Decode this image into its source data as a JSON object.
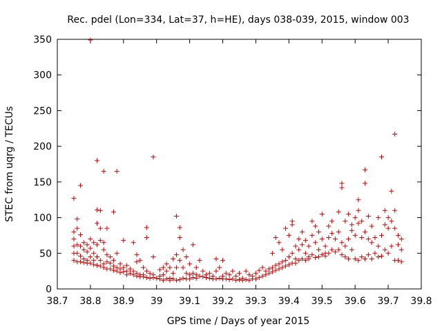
{
  "chart_data": {
    "type": "scatter",
    "title": "Rec. pdel (Lon=334, Lat=37, h=HE), days 038-039, 2015, window 003",
    "xlabel": "GPS time / Days of year 2015",
    "ylabel": "STEC from uqrg / TECUs",
    "xlim": [
      38.7,
      39.8
    ],
    "ylim": [
      0,
      350
    ],
    "xticks": [
      "38.7",
      "38.8",
      "38.9",
      "39",
      "39.1",
      "39.2",
      "39.3",
      "39.4",
      "39.5",
      "39.6",
      "39.7",
      "39.8"
    ],
    "yticks": [
      "0",
      "50",
      "100",
      "150",
      "200",
      "250",
      "300",
      "350"
    ],
    "grid": false,
    "marker": "+",
    "color": "#cc0000",
    "points": [
      [
        38.75,
        127
      ],
      [
        38.75,
        80
      ],
      [
        38.75,
        70
      ],
      [
        38.75,
        60
      ],
      [
        38.75,
        50
      ],
      [
        38.75,
        40
      ],
      [
        38.76,
        98
      ],
      [
        38.76,
        85
      ],
      [
        38.76,
        62
      ],
      [
        38.76,
        50
      ],
      [
        38.76,
        38
      ],
      [
        38.77,
        145
      ],
      [
        38.77,
        76
      ],
      [
        38.77,
        60
      ],
      [
        38.77,
        46
      ],
      [
        38.77,
        38
      ],
      [
        38.78,
        65
      ],
      [
        38.78,
        55
      ],
      [
        38.78,
        42
      ],
      [
        38.78,
        37
      ],
      [
        38.79,
        62
      ],
      [
        38.79,
        52
      ],
      [
        38.79,
        40
      ],
      [
        38.79,
        36
      ],
      [
        38.8,
        349
      ],
      [
        38.8,
        70
      ],
      [
        38.8,
        57
      ],
      [
        38.8,
        45
      ],
      [
        38.8,
        36
      ],
      [
        38.81,
        65
      ],
      [
        38.81,
        50
      ],
      [
        38.81,
        40
      ],
      [
        38.81,
        34
      ],
      [
        38.82,
        180
      ],
      [
        38.82,
        111
      ],
      [
        38.82,
        92
      ],
      [
        38.82,
        62
      ],
      [
        38.82,
        45
      ],
      [
        38.82,
        33
      ],
      [
        38.83,
        110
      ],
      [
        38.83,
        85
      ],
      [
        38.83,
        68
      ],
      [
        38.83,
        40
      ],
      [
        38.83,
        32
      ],
      [
        38.84,
        165
      ],
      [
        38.84,
        65
      ],
      [
        38.84,
        55
      ],
      [
        38.84,
        35
      ],
      [
        38.84,
        30
      ],
      [
        38.85,
        85
      ],
      [
        38.85,
        48
      ],
      [
        38.85,
        38
      ],
      [
        38.85,
        28
      ],
      [
        38.86,
        45
      ],
      [
        38.86,
        36
      ],
      [
        38.86,
        28
      ],
      [
        38.87,
        108
      ],
      [
        38.87,
        40
      ],
      [
        38.87,
        32
      ],
      [
        38.87,
        26
      ],
      [
        38.88,
        165
      ],
      [
        38.88,
        50
      ],
      [
        38.88,
        30
      ],
      [
        38.88,
        25
      ],
      [
        38.89,
        35
      ],
      [
        38.89,
        28
      ],
      [
        38.89,
        23
      ],
      [
        38.9,
        68
      ],
      [
        38.9,
        30
      ],
      [
        38.9,
        24
      ],
      [
        38.91,
        33
      ],
      [
        38.91,
        25
      ],
      [
        38.91,
        20
      ],
      [
        38.92,
        28
      ],
      [
        38.92,
        22
      ],
      [
        38.93,
        65
      ],
      [
        38.93,
        25
      ],
      [
        38.93,
        20
      ],
      [
        38.94,
        48
      ],
      [
        38.94,
        38
      ],
      [
        38.94,
        22
      ],
      [
        38.94,
        18
      ],
      [
        38.95,
        40
      ],
      [
        38.95,
        20
      ],
      [
        38.95,
        17
      ],
      [
        38.96,
        30
      ],
      [
        38.96,
        20
      ],
      [
        38.96,
        17
      ],
      [
        38.97,
        86
      ],
      [
        38.97,
        72
      ],
      [
        38.97,
        25
      ],
      [
        38.97,
        16
      ],
      [
        38.98,
        22
      ],
      [
        38.98,
        15
      ],
      [
        38.99,
        185
      ],
      [
        38.99,
        45
      ],
      [
        38.99,
        20
      ],
      [
        38.99,
        16
      ],
      [
        39.0,
        15
      ],
      [
        39.01,
        27
      ],
      [
        39.01,
        18
      ],
      [
        39.01,
        14
      ],
      [
        39.02,
        30
      ],
      [
        39.02,
        20
      ],
      [
        39.02,
        12
      ],
      [
        39.03,
        35
      ],
      [
        39.03,
        25
      ],
      [
        39.03,
        14
      ],
      [
        39.04,
        30
      ],
      [
        39.04,
        15
      ],
      [
        39.04,
        12
      ],
      [
        39.05,
        42
      ],
      [
        39.05,
        22
      ],
      [
        39.05,
        14
      ],
      [
        39.06,
        102
      ],
      [
        39.06,
        48
      ],
      [
        39.06,
        30
      ],
      [
        39.06,
        12
      ],
      [
        39.07,
        86
      ],
      [
        39.07,
        72
      ],
      [
        39.07,
        40
      ],
      [
        39.07,
        13
      ],
      [
        39.08,
        55
      ],
      [
        39.08,
        30
      ],
      [
        39.08,
        15
      ],
      [
        39.09,
        45
      ],
      [
        39.09,
        22
      ],
      [
        39.09,
        14
      ],
      [
        39.1,
        35
      ],
      [
        39.1,
        20
      ],
      [
        39.1,
        14
      ],
      [
        39.11,
        62
      ],
      [
        39.11,
        22
      ],
      [
        39.11,
        16
      ],
      [
        39.12,
        30
      ],
      [
        39.12,
        20
      ],
      [
        39.12,
        15
      ],
      [
        39.13,
        40
      ],
      [
        39.13,
        18
      ],
      [
        39.14,
        25
      ],
      [
        39.14,
        17
      ],
      [
        39.15,
        20
      ],
      [
        39.15,
        16
      ],
      [
        39.16,
        22
      ],
      [
        39.16,
        15
      ],
      [
        39.17,
        18
      ],
      [
        39.17,
        14
      ],
      [
        39.18,
        42
      ],
      [
        39.18,
        25
      ],
      [
        39.18,
        14
      ],
      [
        39.19,
        30
      ],
      [
        39.19,
        15
      ],
      [
        39.2,
        40
      ],
      [
        39.2,
        18
      ],
      [
        39.2,
        14
      ],
      [
        39.21,
        22
      ],
      [
        39.21,
        14
      ],
      [
        39.22,
        20
      ],
      [
        39.22,
        13
      ],
      [
        39.23,
        25
      ],
      [
        39.23,
        14
      ],
      [
        39.24,
        18
      ],
      [
        39.24,
        12
      ],
      [
        39.25,
        22
      ],
      [
        39.25,
        13
      ],
      [
        39.26,
        15
      ],
      [
        39.26,
        12
      ],
      [
        39.27,
        25
      ],
      [
        39.27,
        13
      ],
      [
        39.28,
        20
      ],
      [
        39.28,
        12
      ],
      [
        39.29,
        18
      ],
      [
        39.29,
        14
      ],
      [
        39.3,
        22
      ],
      [
        39.3,
        14
      ],
      [
        39.31,
        26
      ],
      [
        39.31,
        16
      ],
      [
        39.32,
        30
      ],
      [
        39.32,
        18
      ],
      [
        39.33,
        25
      ],
      [
        39.33,
        20
      ],
      [
        39.34,
        28
      ],
      [
        39.34,
        22
      ],
      [
        39.35,
        50
      ],
      [
        39.35,
        30
      ],
      [
        39.35,
        24
      ],
      [
        39.36,
        72
      ],
      [
        39.36,
        33
      ],
      [
        39.36,
        26
      ],
      [
        39.37,
        65
      ],
      [
        39.37,
        35
      ],
      [
        39.37,
        28
      ],
      [
        39.38,
        55
      ],
      [
        39.38,
        38
      ],
      [
        39.38,
        30
      ],
      [
        39.39,
        85
      ],
      [
        39.39,
        40
      ],
      [
        39.39,
        32
      ],
      [
        39.4,
        75
      ],
      [
        39.4,
        45
      ],
      [
        39.4,
        34
      ],
      [
        39.41,
        95
      ],
      [
        39.41,
        90
      ],
      [
        39.41,
        50
      ],
      [
        39.41,
        36
      ],
      [
        39.42,
        60
      ],
      [
        39.42,
        42
      ],
      [
        39.42,
        36
      ],
      [
        39.43,
        70
      ],
      [
        39.43,
        55
      ],
      [
        39.43,
        40
      ],
      [
        39.44,
        80
      ],
      [
        39.44,
        62
      ],
      [
        39.44,
        42
      ],
      [
        39.45,
        68
      ],
      [
        39.45,
        50
      ],
      [
        39.45,
        40
      ],
      [
        39.46,
        60
      ],
      [
        39.46,
        45
      ],
      [
        39.46,
        42
      ],
      [
        39.47,
        95
      ],
      [
        39.47,
        75
      ],
      [
        39.47,
        48
      ],
      [
        39.48,
        88
      ],
      [
        39.48,
        65
      ],
      [
        39.48,
        44
      ],
      [
        39.49,
        80
      ],
      [
        39.49,
        55
      ],
      [
        39.49,
        45
      ],
      [
        39.5,
        105
      ],
      [
        39.5,
        70
      ],
      [
        39.5,
        48
      ],
      [
        39.51,
        60
      ],
      [
        39.51,
        50
      ],
      [
        39.51,
        46
      ],
      [
        39.52,
        88
      ],
      [
        39.52,
        72
      ],
      [
        39.52,
        50
      ],
      [
        39.53,
        95
      ],
      [
        39.53,
        78
      ],
      [
        39.53,
        55
      ],
      [
        39.54,
        70
      ],
      [
        39.54,
        52
      ],
      [
        39.55,
        108
      ],
      [
        39.55,
        80
      ],
      [
        39.55,
        55
      ],
      [
        39.56,
        148
      ],
      [
        39.56,
        142
      ],
      [
        39.56,
        65
      ],
      [
        39.56,
        48
      ],
      [
        39.57,
        95
      ],
      [
        39.57,
        60
      ],
      [
        39.57,
        45
      ],
      [
        39.58,
        105
      ],
      [
        39.58,
        70
      ],
      [
        39.58,
        42
      ],
      [
        39.59,
        90
      ],
      [
        39.59,
        82
      ],
      [
        39.59,
        55
      ],
      [
        39.6,
        100
      ],
      [
        39.6,
        75
      ],
      [
        39.6,
        42
      ],
      [
        39.61,
        125
      ],
      [
        39.61,
        110
      ],
      [
        39.61,
        92
      ],
      [
        39.61,
        40
      ],
      [
        39.62,
        95
      ],
      [
        39.62,
        72
      ],
      [
        39.62,
        45
      ],
      [
        39.63,
        167
      ],
      [
        39.63,
        148
      ],
      [
        39.63,
        80
      ],
      [
        39.63,
        42
      ],
      [
        39.64,
        102
      ],
      [
        39.64,
        70
      ],
      [
        39.64,
        48
      ],
      [
        39.65,
        88
      ],
      [
        39.65,
        65
      ],
      [
        39.65,
        42
      ],
      [
        39.66,
        72
      ],
      [
        39.66,
        50
      ],
      [
        39.67,
        100
      ],
      [
        39.67,
        60
      ],
      [
        39.67,
        45
      ],
      [
        39.68,
        185
      ],
      [
        39.68,
        75
      ],
      [
        39.68,
        46
      ],
      [
        39.69,
        110
      ],
      [
        39.69,
        90
      ],
      [
        39.69,
        55
      ],
      [
        39.7,
        100
      ],
      [
        39.7,
        85
      ],
      [
        39.7,
        50
      ],
      [
        39.71,
        137
      ],
      [
        39.71,
        95
      ],
      [
        39.71,
        60
      ],
      [
        39.72,
        217
      ],
      [
        39.72,
        110
      ],
      [
        39.72,
        85
      ],
      [
        39.72,
        40
      ],
      [
        39.73,
        75
      ],
      [
        39.73,
        62
      ],
      [
        39.73,
        40
      ],
      [
        39.74,
        70
      ],
      [
        39.74,
        55
      ],
      [
        39.74,
        38
      ]
    ]
  }
}
